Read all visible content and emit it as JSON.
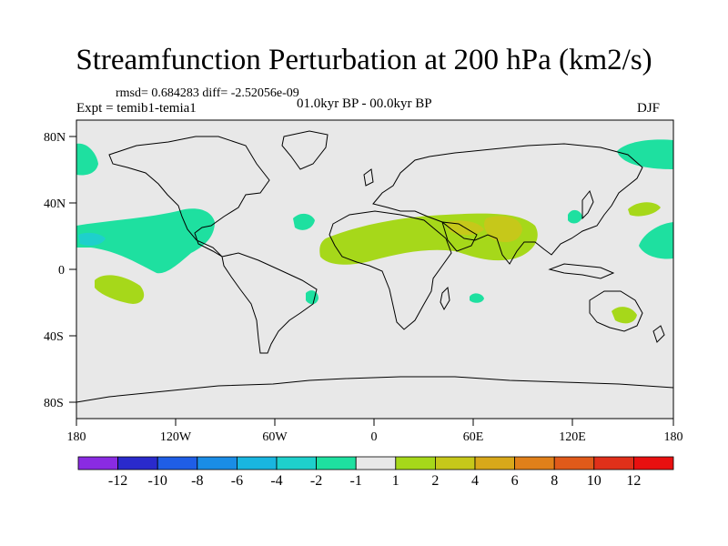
{
  "title": "Streamfunction Perturbation at 200 hPa (km2/s)",
  "stats": "rmsd= 0.684283  diff= -2.52056e-09",
  "experiment": "Expt = temib1-temia1",
  "period": "01.0kyr BP - 00.0kyr BP",
  "season": "DJF",
  "lat_labels": [
    "80N",
    "40N",
    "0",
    "40S",
    "80S"
  ],
  "lon_labels": [
    "180",
    "120W",
    "60W",
    "0",
    "60E",
    "120E",
    "180"
  ],
  "colorbar": {
    "labels": [
      "-12",
      "-10",
      "-8",
      "-6",
      "-4",
      "-2",
      "-1",
      "1",
      "2",
      "4",
      "6",
      "8",
      "10",
      "12"
    ],
    "colors": [
      "#8a2be2",
      "#2a2acc",
      "#1f5ee6",
      "#1a8de6",
      "#19b6e0",
      "#1ed0cc",
      "#1ee0a0",
      "#e8e8e8",
      "#a6d81a",
      "#c6c81a",
      "#d8a81a",
      "#e0801a",
      "#e05a1a",
      "#e0301a",
      "#e81010"
    ]
  },
  "colors": {
    "background": "#e8e8e8",
    "neg_weak": "#1ee0a0",
    "neg_mid": "#1ed0cc",
    "pos_weak": "#a6d81a",
    "pos_mid": "#c6c81a"
  }
}
